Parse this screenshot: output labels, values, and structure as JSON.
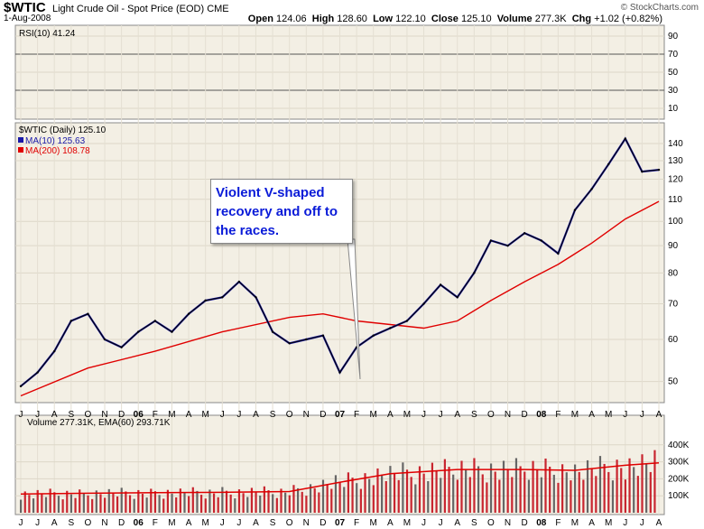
{
  "header": {
    "symbol": "$WTIC",
    "description": "Light Crude Oil - Spot Price (EOD)",
    "exchange": "CME",
    "date": "1-Aug-2008",
    "open_label": "Open",
    "open": "124.06",
    "high_label": "High",
    "high": "128.60",
    "low_label": "Low",
    "low": "122.10",
    "close_label": "Close",
    "close": "125.10",
    "volume_label": "Volume",
    "volume": "277.3K",
    "chg_label": "Chg",
    "chg": "+1.02 (+0.82%)",
    "brand": "© StockCharts.com"
  },
  "colors": {
    "price": "#000000",
    "ma10": "#1a1aa8",
    "ma200": "#e00000",
    "volume_up": "#c8252f",
    "volume_down": "#666666",
    "annotation": "#0a1bd8",
    "panel_bg": "#f3efe4"
  },
  "annotation": {
    "line1": "Violent V-shaped",
    "line2": "recovery and off to",
    "line3": "the races."
  },
  "chart_data": [
    {
      "type": "line",
      "panel": "rsi",
      "title": "RSI(10) 41.24",
      "series": [
        {
          "name": "RSI(10)",
          "last": 41.24
        }
      ],
      "y_ticks": [
        "90",
        "70",
        "50",
        "30",
        "10"
      ],
      "ylim": [
        0,
        100
      ],
      "reference_lines": [
        70,
        30
      ]
    },
    {
      "type": "line",
      "panel": "price",
      "title": "$WTIC (Daily) 125.10",
      "legend": [
        "MA(10) 125.63",
        "MA(200) 108.78"
      ],
      "x_ticks": [
        "J",
        "J",
        "A",
        "S",
        "O",
        "N",
        "D",
        "06",
        "F",
        "M",
        "A",
        "M",
        "J",
        "J",
        "A",
        "S",
        "O",
        "N",
        "D",
        "07",
        "F",
        "M",
        "A",
        "M",
        "J",
        "J",
        "A",
        "S",
        "O",
        "N",
        "D",
        "08",
        "F",
        "M",
        "A",
        "M",
        "J",
        "J",
        "A"
      ],
      "y_ticks": [
        "140",
        "130",
        "120",
        "110",
        "100",
        "90",
        "80",
        "70",
        "60",
        "50"
      ],
      "ylim": [
        46,
        152
      ],
      "scale": "log",
      "series": [
        {
          "name": "$WTIC",
          "points": [
            [
              0,
              49
            ],
            [
              1,
              52
            ],
            [
              2,
              57
            ],
            [
              3,
              65
            ],
            [
              4,
              67
            ],
            [
              5,
              60
            ],
            [
              6,
              58
            ],
            [
              7,
              62
            ],
            [
              8,
              65
            ],
            [
              9,
              62
            ],
            [
              10,
              67
            ],
            [
              11,
              71
            ],
            [
              12,
              72
            ],
            [
              13,
              77
            ],
            [
              14,
              72
            ],
            [
              15,
              62
            ],
            [
              16,
              59
            ],
            [
              17,
              60
            ],
            [
              18,
              61
            ],
            [
              19,
              52
            ],
            [
              20,
              58
            ],
            [
              21,
              61
            ],
            [
              22,
              63
            ],
            [
              23,
              65
            ],
            [
              24,
              70
            ],
            [
              25,
              76
            ],
            [
              26,
              72
            ],
            [
              27,
              80
            ],
            [
              28,
              92
            ],
            [
              29,
              90
            ],
            [
              30,
              95
            ],
            [
              31,
              92
            ],
            [
              32,
              87
            ],
            [
              33,
              105
            ],
            [
              34,
              115
            ],
            [
              35,
              128
            ],
            [
              36,
              143
            ],
            [
              37,
              124
            ],
            [
              38,
              125
            ]
          ]
        },
        {
          "name": "MA(10)",
          "last": 125.63
        },
        {
          "name": "MA(200)",
          "points": [
            [
              0,
              47
            ],
            [
              4,
              53
            ],
            [
              8,
              57
            ],
            [
              12,
              62
            ],
            [
              16,
              66
            ],
            [
              18,
              67
            ],
            [
              20,
              65
            ],
            [
              24,
              63
            ],
            [
              26,
              65
            ],
            [
              28,
              71
            ],
            [
              30,
              77
            ],
            [
              32,
              83
            ],
            [
              34,
              91
            ],
            [
              36,
              101
            ],
            [
              38,
              109
            ]
          ]
        }
      ]
    },
    {
      "type": "bar",
      "panel": "volume",
      "title": "Volume 277.31K, EMA(60) 293.71K",
      "y_ticks": [
        "400K",
        "300K",
        "200K",
        "100K"
      ],
      "ylim": [
        0,
        500
      ],
      "series": [
        {
          "name": "Volume",
          "last": 277.31
        },
        {
          "name": "EMA(60)",
          "points": [
            [
              0,
              110
            ],
            [
              4,
              115
            ],
            [
              8,
              118
            ],
            [
              12,
              120
            ],
            [
              16,
              125
            ],
            [
              19,
              180
            ],
            [
              22,
              230
            ],
            [
              26,
              255
            ],
            [
              30,
              255
            ],
            [
              33,
              250
            ],
            [
              36,
              280
            ],
            [
              38,
              294
            ]
          ]
        }
      ]
    }
  ]
}
